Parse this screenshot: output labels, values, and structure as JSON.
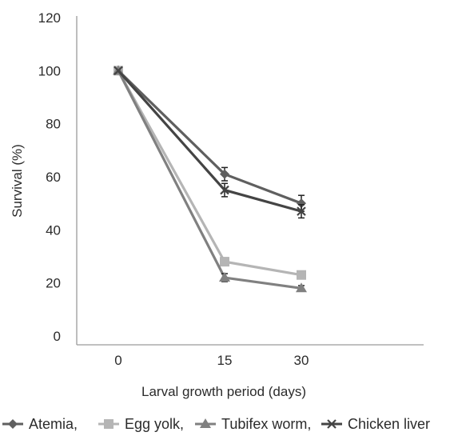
{
  "chart_data": {
    "type": "line",
    "title": "",
    "xlabel": "Larval growth period (days)",
    "ylabel": "Survival (%)",
    "categories": [
      "0",
      "15",
      "30"
    ],
    "ylim": [
      0,
      120
    ],
    "yticks": [
      "0",
      "20",
      "40",
      "60",
      "80",
      "100",
      "120"
    ],
    "grid": false,
    "legend_position": "bottom",
    "series": [
      {
        "name": "Atemia,",
        "values": [
          100,
          61,
          50
        ],
        "error": [
          0,
          2.5,
          3
        ],
        "marker": "diamond",
        "color": "#5f5f5f"
      },
      {
        "name": "Egg yolk,",
        "values": [
          100,
          28,
          23
        ],
        "error": [
          0,
          1.5,
          1
        ],
        "marker": "square",
        "color": "#b5b5b5"
      },
      {
        "name": "Tubifex worm,",
        "values": [
          100,
          22,
          18
        ],
        "error": [
          0,
          1.5,
          1
        ],
        "marker": "triangle",
        "color": "#808080"
      },
      {
        "name": "Chicken liver",
        "values": [
          100,
          55,
          47
        ],
        "error": [
          0,
          2.5,
          2.5
        ],
        "marker": "x",
        "color": "#444444"
      }
    ]
  }
}
